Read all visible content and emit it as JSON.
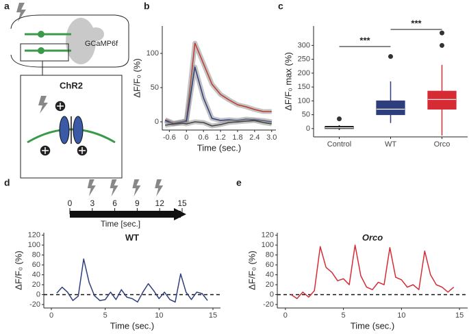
{
  "panel_labels": [
    "a",
    "b",
    "c",
    "d",
    "e"
  ],
  "diagram": {
    "gcamp_label": "GCaMP6f",
    "box_title": "ChR2"
  },
  "chart_data": [
    {
      "type": "line",
      "xlabel": "Time (sec.)",
      "ylabel": "ΔF/F₀ (%)",
      "band": true,
      "x": [
        -0.75,
        -0.45,
        -0.15,
        0,
        0.3,
        0.6,
        0.9,
        1.2,
        1.5,
        1.8,
        2.1,
        2.4,
        2.7,
        3.0
      ],
      "series": [
        {
          "color": "#c0392b",
          "values": [
            3,
            -2,
            0,
            2,
            115,
            85,
            55,
            40,
            32,
            25,
            22,
            18,
            15,
            15
          ]
        },
        {
          "color": "#2e3d7c",
          "values": [
            2,
            -3,
            0,
            1,
            80,
            35,
            5,
            2,
            3,
            2,
            4,
            3,
            2,
            0
          ]
        },
        {
          "color": "#444444",
          "values": [
            -5,
            -3,
            -2,
            -3,
            0,
            -1,
            -6,
            -4,
            -1,
            0,
            1,
            2,
            -1,
            -3
          ]
        }
      ],
      "xlim": [
        -0.85,
        3.15
      ],
      "ylim": [
        -12,
        140
      ],
      "xticks": [
        -0.6,
        0,
        0.6,
        1.2,
        1.8,
        2.4,
        {
          "value": 3,
          "label": "3.0"
        }
      ],
      "yticks": [
        0,
        50,
        100
      ]
    },
    {
      "type": "box",
      "ylabel": "ΔF/F₀ max (%)",
      "categories": [
        "Control",
        "WT",
        "Orco"
      ],
      "boxes": [
        {
          "color": "#111111",
          "min": -5,
          "q1": 0,
          "median": 3,
          "q3": 8,
          "max": 12,
          "outliers": [
            35
          ]
        },
        {
          "color": "#2e3d7c",
          "min": 20,
          "q1": 50,
          "median": 70,
          "q3": 100,
          "max": 170,
          "outliers": [
            260
          ]
        },
        {
          "color": "#d62a35",
          "min": -25,
          "q1": 70,
          "median": 105,
          "q3": 135,
          "max": 230,
          "outliers": [
            300,
            345
          ]
        }
      ],
      "annotations": [
        "***",
        "***"
      ],
      "ylim": [
        -30,
        370
      ],
      "yticks": [
        0,
        50,
        100,
        150,
        200,
        250,
        300
      ]
    },
    {
      "type": "timeline",
      "xlabel": "Time [sec.]",
      "xlim": [
        0,
        15
      ],
      "xticks": [
        0,
        3,
        6,
        9,
        12,
        15
      ],
      "stimuli": [
        3,
        6,
        9,
        12
      ]
    },
    {
      "type": "line",
      "title": "WT",
      "xlabel": "Time (sec.)",
      "ylabel": "ΔF/F₀ (%)",
      "reference_line": 0,
      "x": [
        0.5,
        1,
        1.5,
        2,
        2.5,
        3,
        3.5,
        4,
        4.5,
        5,
        5.5,
        6,
        6.5,
        7,
        7.5,
        8,
        8.5,
        9,
        9.5,
        10,
        10.5,
        11,
        11.5,
        12,
        12.5,
        13,
        13.5,
        14,
        14.5
      ],
      "series": [
        {
          "color": "#2e3d7c",
          "values": [
            3,
            15,
            5,
            -12,
            -3,
            72,
            25,
            -2,
            -12,
            -10,
            5,
            -10,
            10,
            -5,
            -8,
            -15,
            5,
            22,
            8,
            -8,
            5,
            -10,
            -15,
            42,
            5,
            -10,
            5,
            2,
            -12
          ]
        }
      ],
      "xlim": [
        -0.7,
        15.7
      ],
      "ylim": [
        -27,
        125
      ],
      "xticks": [
        0,
        5,
        10,
        15
      ],
      "yticks": [
        -20,
        0,
        20,
        40,
        60,
        80,
        100,
        120
      ]
    },
    {
      "type": "line",
      "title": "Orco",
      "xlabel": "Time (sec.)",
      "ylabel": "ΔF/F₀ (%)",
      "reference_line": 0,
      "x": [
        0.5,
        1,
        1.5,
        2,
        2.5,
        3,
        3.5,
        4,
        4.5,
        5,
        5.5,
        6,
        6.5,
        7,
        7.5,
        8,
        8.5,
        9,
        9.5,
        10,
        10.5,
        11,
        11.5,
        12,
        12.5,
        13,
        13.5,
        14,
        14.5
      ],
      "series": [
        {
          "color": "#d62a35",
          "values": [
            0,
            -8,
            5,
            -5,
            8,
            97,
            55,
            45,
            28,
            32,
            20,
            100,
            38,
            15,
            10,
            25,
            20,
            95,
            35,
            30,
            15,
            20,
            10,
            88,
            40,
            20,
            15,
            5,
            15
          ]
        }
      ],
      "xlim": [
        -0.7,
        15.7
      ],
      "ylim": [
        -27,
        125
      ],
      "xticks": [
        0,
        5,
        10,
        15
      ],
      "yticks": [
        -20,
        0,
        20,
        40,
        60,
        80,
        100,
        120
      ]
    }
  ]
}
